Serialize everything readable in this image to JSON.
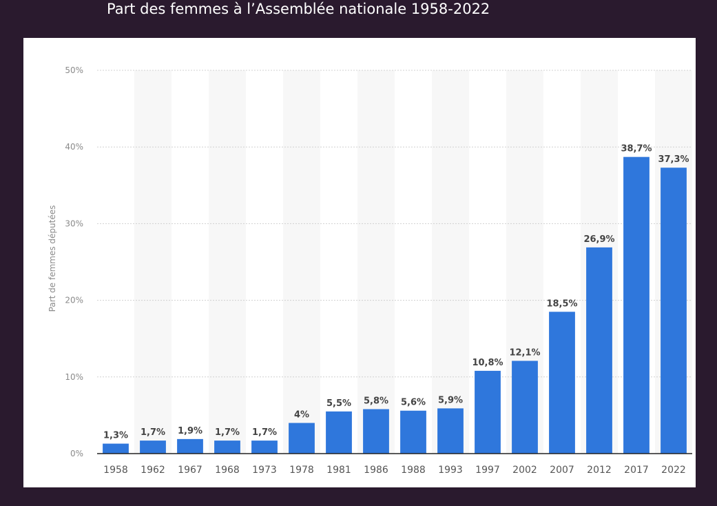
{
  "title": "Part des femmes à l’Assemblée nationale 1958-2022",
  "colors": {
    "background": "#2a1a2e",
    "bar": "#2f77dc",
    "band": "#f7f7f7",
    "grid": "#d0d0d0"
  },
  "chart_data": {
    "type": "bar",
    "title": "Part des femmes à l’Assemblée nationale 1958-2022",
    "xlabel": "",
    "ylabel": "Part de femmes députées",
    "ylim": [
      0,
      50
    ],
    "yticks": [
      "0%",
      "10%",
      "20%",
      "30%",
      "40%",
      "50%"
    ],
    "grid": true,
    "categories": [
      "1958",
      "1962",
      "1967",
      "1968",
      "1973",
      "1978",
      "1981",
      "1986",
      "1988",
      "1993",
      "1997",
      "2002",
      "2007",
      "2012",
      "2017",
      "2022"
    ],
    "values": [
      1.3,
      1.7,
      1.9,
      1.7,
      1.7,
      4,
      5.5,
      5.8,
      5.6,
      5.9,
      10.8,
      12.1,
      18.5,
      26.9,
      38.7,
      37.3
    ],
    "data_labels": [
      "1,3%",
      "1,7%",
      "1,9%",
      "1,7%",
      "1,7%",
      "4%",
      "5,5%",
      "5,8%",
      "5,6%",
      "5,9%",
      "10,8%",
      "12,1%",
      "18,5%",
      "26,9%",
      "38,7%",
      "37,3%"
    ]
  }
}
